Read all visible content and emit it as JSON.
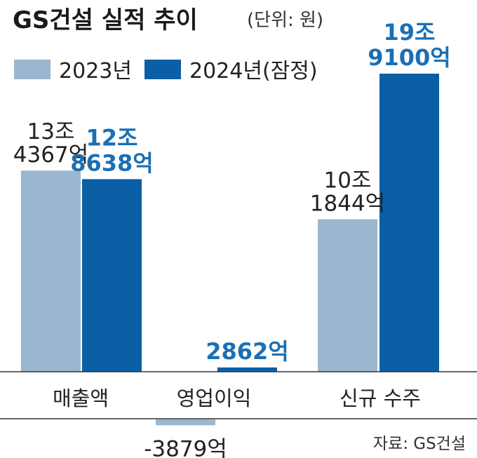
{
  "title": "GS건설 실적 추이",
  "unit": "(단위: 원)",
  "source": "자료: GS건설",
  "colors": {
    "2023": "#9ab7cf",
    "2024": "#0b5fa5",
    "label2024": "#1a6fb5"
  },
  "chart_data": {
    "type": "bar",
    "title": "GS건설 실적 추이",
    "unit": "(단위: 원)",
    "categories": [
      "매출액",
      "영업이익",
      "신규 수주"
    ],
    "series": [
      {
        "name": "2023년",
        "values": [
          134367,
          -3879,
          101844
        ],
        "labels": [
          [
            "13조",
            "4367억"
          ],
          [
            "-3879억"
          ],
          [
            "10조",
            "1844억"
          ]
        ]
      },
      {
        "name": "2024년(잠정)",
        "values": [
          128638,
          2862,
          199100
        ],
        "labels": [
          [
            "12조",
            "8638억"
          ],
          [
            "2862억"
          ],
          [
            "19조",
            "9100억"
          ]
        ]
      }
    ],
    "value_unit": "억원",
    "legend_position": "top-left",
    "grid": false
  }
}
